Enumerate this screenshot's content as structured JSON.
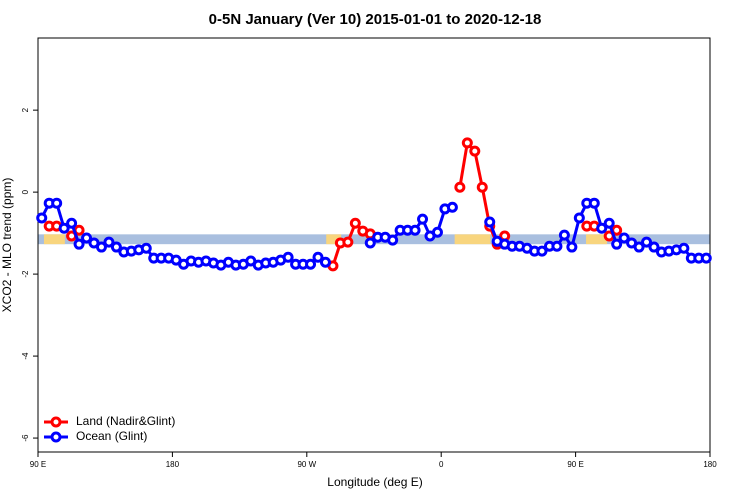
{
  "chart_data": {
    "type": "line",
    "title": "0-5N January (Ver 10)   2015-01-01 to 2020-12-18",
    "x_label": "Longitude (deg E)",
    "y_label": "XCO2 - MLO trend (ppm)",
    "x": [
      92.5,
      97.5,
      102.5,
      107.5,
      112.5,
      117.5,
      122.5,
      127.5,
      132.5,
      137.5,
      142.5,
      147.5,
      152.5,
      157.5,
      162.5,
      167.5,
      172.5,
      177.5,
      182.5,
      187.5,
      192.5,
      197.5,
      202.5,
      207.5,
      212.5,
      217.5,
      222.5,
      227.5,
      232.5,
      237.5,
      242.5,
      247.5,
      252.5,
      257.5,
      262.5,
      267.5,
      272.5,
      277.5,
      282.5,
      287.5,
      292.5,
      297.5,
      302.5,
      307.5,
      312.5,
      317.5,
      322.5,
      327.5,
      332.5,
      337.5,
      342.5,
      347.5,
      352.5,
      357.5,
      362.5,
      367.5,
      372.5,
      377.5,
      382.5,
      387.5,
      392.5,
      397.5,
      402.5,
      407.5,
      412.5,
      417.5,
      422.5,
      427.5,
      432.5,
      437.5,
      442.5,
      447.5,
      452.5,
      457.5,
      462.5,
      467.5,
      472.5,
      477.5,
      482.5,
      487.5,
      492.5,
      497.5,
      502.5,
      507.5,
      512.5,
      517.5,
      522.5,
      527.5,
      532.5,
      537.5
    ],
    "series": [
      {
        "name": "Land (Nadir&Glint)",
        "color": "#ff0000",
        "values": [
          null,
          -0.83,
          -0.83,
          null,
          -1.07,
          -0.93,
          null,
          null,
          null,
          null,
          null,
          null,
          null,
          null,
          null,
          null,
          null,
          null,
          null,
          null,
          null,
          null,
          null,
          null,
          null,
          null,
          null,
          null,
          null,
          null,
          null,
          null,
          null,
          null,
          null,
          null,
          null,
          null,
          null,
          -1.8,
          -1.24,
          -1.22,
          -0.76,
          -0.95,
          -1.02,
          null,
          null,
          null,
          null,
          null,
          null,
          null,
          null,
          null,
          null,
          null,
          0.12,
          1.2,
          1.0,
          0.12,
          -0.83,
          -1.27,
          -1.07,
          null,
          null,
          null,
          null,
          null,
          null,
          null,
          null,
          null,
          null,
          -0.83,
          -0.83,
          null,
          -1.07,
          -0.93,
          null,
          null,
          null,
          null,
          null,
          null,
          null,
          null,
          null,
          null,
          null,
          null
        ]
      },
      {
        "name": "Ocean (Glint)",
        "color": "#0000ff",
        "values": [
          -0.63,
          -0.27,
          -0.27,
          -0.88,
          -0.76,
          -1.27,
          -1.12,
          -1.24,
          -1.34,
          -1.22,
          -1.34,
          -1.46,
          -1.44,
          -1.41,
          -1.37,
          -1.61,
          -1.61,
          -1.61,
          -1.66,
          -1.76,
          -1.68,
          -1.71,
          -1.68,
          -1.73,
          -1.78,
          -1.71,
          -1.78,
          -1.76,
          -1.68,
          -1.78,
          -1.73,
          -1.71,
          -1.66,
          -1.59,
          -1.76,
          -1.76,
          -1.76,
          -1.59,
          -1.71,
          null,
          null,
          null,
          null,
          null,
          -1.24,
          -1.1,
          -1.1,
          -1.17,
          -0.93,
          -0.93,
          -0.93,
          -0.66,
          -1.07,
          -0.98,
          -0.41,
          -0.37,
          null,
          null,
          null,
          null,
          -0.73,
          -1.2,
          -1.27,
          -1.32,
          -1.32,
          -1.37,
          -1.44,
          -1.44,
          -1.32,
          -1.32,
          -1.05,
          -1.34,
          -0.63,
          -0.27,
          -0.27,
          -0.88,
          -0.76,
          -1.27,
          -1.12,
          -1.24,
          -1.34,
          -1.22,
          -1.34,
          -1.46,
          -1.44,
          -1.41,
          -1.37,
          -1.61,
          -1.61,
          -1.61
        ]
      }
    ],
    "band": {
      "ylim": [
        -1.27,
        -1.03
      ],
      "color": "#a9bfdf",
      "land_color": "#f8d57e",
      "land_ranges": [
        [
          94,
          108
        ],
        [
          283,
          293
        ],
        [
          369,
          393
        ],
        [
          457,
          471
        ]
      ]
    },
    "xlim": [
      90,
      540
    ],
    "xticks": [
      {
        "value": 90,
        "label": "90 E"
      },
      180,
      {
        "value": 270,
        "label": "90 W"
      },
      {
        "value": 360,
        "label": "0"
      },
      {
        "value": 450,
        "label": "90 E"
      },
      {
        "value": 540,
        "label": "180"
      }
    ],
    "ylim": [
      -6.34,
      3.76
    ],
    "yticks": [
      -6,
      -4,
      -2,
      0,
      2
    ],
    "legend": "bottom-left"
  }
}
